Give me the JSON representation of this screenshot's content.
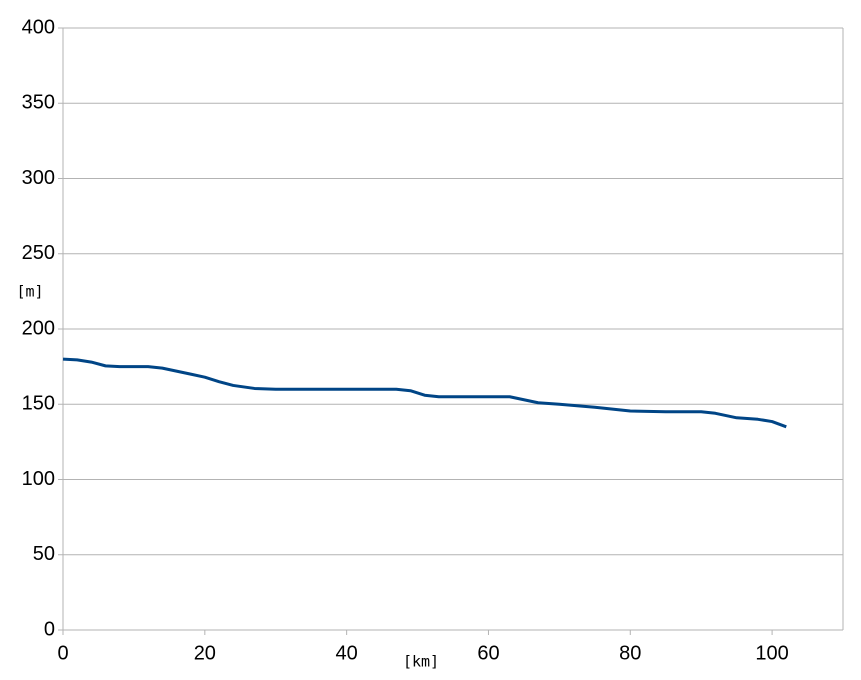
{
  "chart_data": {
    "type": "line",
    "x_label": "[km]",
    "y_label": "[m]",
    "x": [
      0,
      2,
      4,
      6,
      8,
      12,
      14,
      18,
      20,
      22,
      24,
      27,
      30,
      40,
      47,
      49,
      51,
      53,
      60,
      63,
      65,
      67,
      70,
      75,
      80,
      85,
      90,
      92,
      95,
      98,
      100,
      102
    ],
    "series": [
      {
        "color": "#004586",
        "values": [
          180,
          179.5,
          178,
          175.5,
          175,
          175,
          174,
          170,
          168,
          165,
          162.5,
          160.5,
          160,
          160,
          160,
          159,
          156,
          155,
          155,
          155,
          153,
          151,
          150,
          148,
          145.5,
          145,
          145,
          144,
          141,
          140,
          138.5,
          135
        ]
      }
    ],
    "xlim": [
      0,
      110
    ],
    "xticks": [
      0,
      20,
      40,
      60,
      80,
      100
    ],
    "ylim": [
      0,
      400
    ],
    "yticks": [
      0,
      50,
      100,
      150,
      200,
      250,
      300,
      350,
      400
    ],
    "grid": true
  }
}
